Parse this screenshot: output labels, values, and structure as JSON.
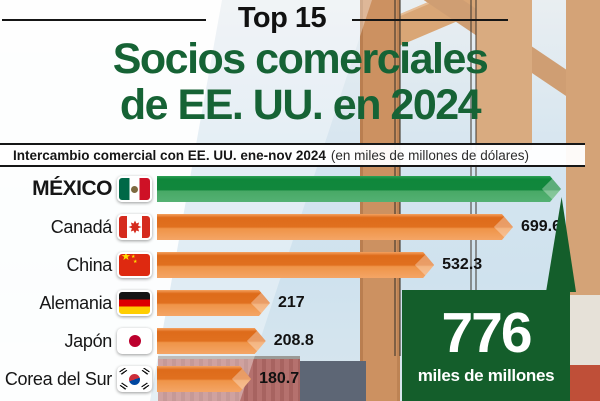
{
  "header": {
    "top_label": "Top 15",
    "title_line1": "Socios comerciales",
    "title_line2": "de EE. UU. en 2024",
    "title_color": "#166335"
  },
  "subtitle": {
    "main": "Intercambio comercial con EE. UU. ene-nov 2024",
    "note": "(en miles de millones de dólares)"
  },
  "chart_data": {
    "type": "bar",
    "orientation": "horizontal",
    "title": "Top 15 Socios comerciales de EE. UU. en 2024",
    "subtitle": "Intercambio comercial con EE. UU. ene-nov 2024 (en miles de millones de dólares)",
    "unit": "miles de millones de dólares",
    "max_value": 776,
    "xlim": [
      0,
      776
    ],
    "grid": false,
    "legend": null,
    "categories": [
      "México",
      "Canadá",
      "China",
      "Alemania",
      "Japón",
      "Corea del Sur"
    ],
    "values": [
      776,
      699.6,
      532.3,
      217,
      208.8,
      180.7
    ],
    "bar_colors": {
      "mexico": "#0f8a3d",
      "others": "#e8781f"
    },
    "rows": [
      {
        "label": "MÉXICO",
        "flag": "mexico",
        "value": 776,
        "value_label": ""
      },
      {
        "label": "Canadá",
        "flag": "canada",
        "value": 699.6,
        "value_label": "699.6"
      },
      {
        "label": "China",
        "flag": "china",
        "value": 532.3,
        "value_label": "532.3"
      },
      {
        "label": "Alemania",
        "flag": "germany",
        "value": 217,
        "value_label": "217"
      },
      {
        "label": "Japón",
        "flag": "japan",
        "value": 208.8,
        "value_label": "208.8"
      },
      {
        "label": "Corea del Sur",
        "flag": "south-korea",
        "value": 180.7,
        "value_label": "180.7"
      }
    ]
  },
  "highlight": {
    "value": "776",
    "caption": "miles de millones",
    "background": "#145e2b"
  },
  "icons": {
    "flags": [
      "mexico-flag-icon",
      "canada-flag-icon",
      "china-flag-icon",
      "germany-flag-icon",
      "japan-flag-icon",
      "south-korea-flag-icon"
    ]
  }
}
